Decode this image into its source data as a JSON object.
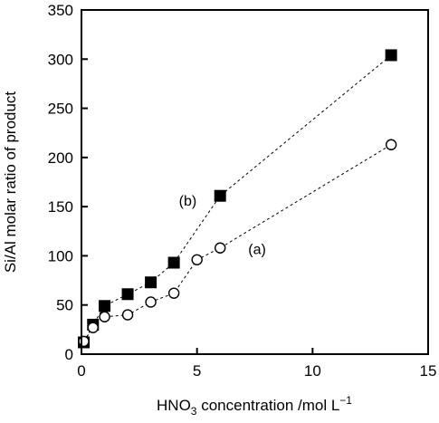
{
  "chart_data": {
    "type": "scatter",
    "xlabel": "HNO3 concentration /mol L−1",
    "xlabel_parts": {
      "main": "HNO",
      "sub": "3",
      "rest": " concentration /mol L",
      "sup": "−1"
    },
    "ylabel": "Si/Al molar ratio of product",
    "xlim": [
      0,
      15
    ],
    "ylim": [
      0,
      350
    ],
    "xticks": [
      0,
      5,
      10,
      15
    ],
    "xtick_labels": [
      "0",
      "5",
      "10",
      "15"
    ],
    "yticks": [
      0,
      50,
      100,
      150,
      200,
      250,
      300,
      350
    ],
    "ytick_labels": [
      "0",
      "50",
      "100",
      "150",
      "200",
      "250",
      "300",
      "350"
    ],
    "grid": false,
    "legend": "none",
    "series": [
      {
        "label": "(b)",
        "marker": "filled-square",
        "line": "dotted",
        "x": [
          0.1,
          0.5,
          1,
          2,
          3,
          4,
          6,
          13.4
        ],
        "y": [
          12,
          30,
          49,
          61,
          73,
          93,
          161,
          304
        ]
      },
      {
        "label": "(a)",
        "marker": "open-circle",
        "line": "dotted",
        "x": [
          0.1,
          0.5,
          1,
          2,
          3,
          4,
          5,
          6,
          13.4
        ],
        "y": [
          13,
          27,
          38,
          40,
          53,
          62,
          96,
          108,
          213
        ]
      }
    ],
    "annotations": [
      {
        "text": "(b)",
        "x": 4.6,
        "y": 151
      },
      {
        "text": "(a)",
        "x": 7.6,
        "y": 102
      }
    ],
    "colors": {
      "marker": "#000000",
      "background": "#ffffff"
    }
  }
}
